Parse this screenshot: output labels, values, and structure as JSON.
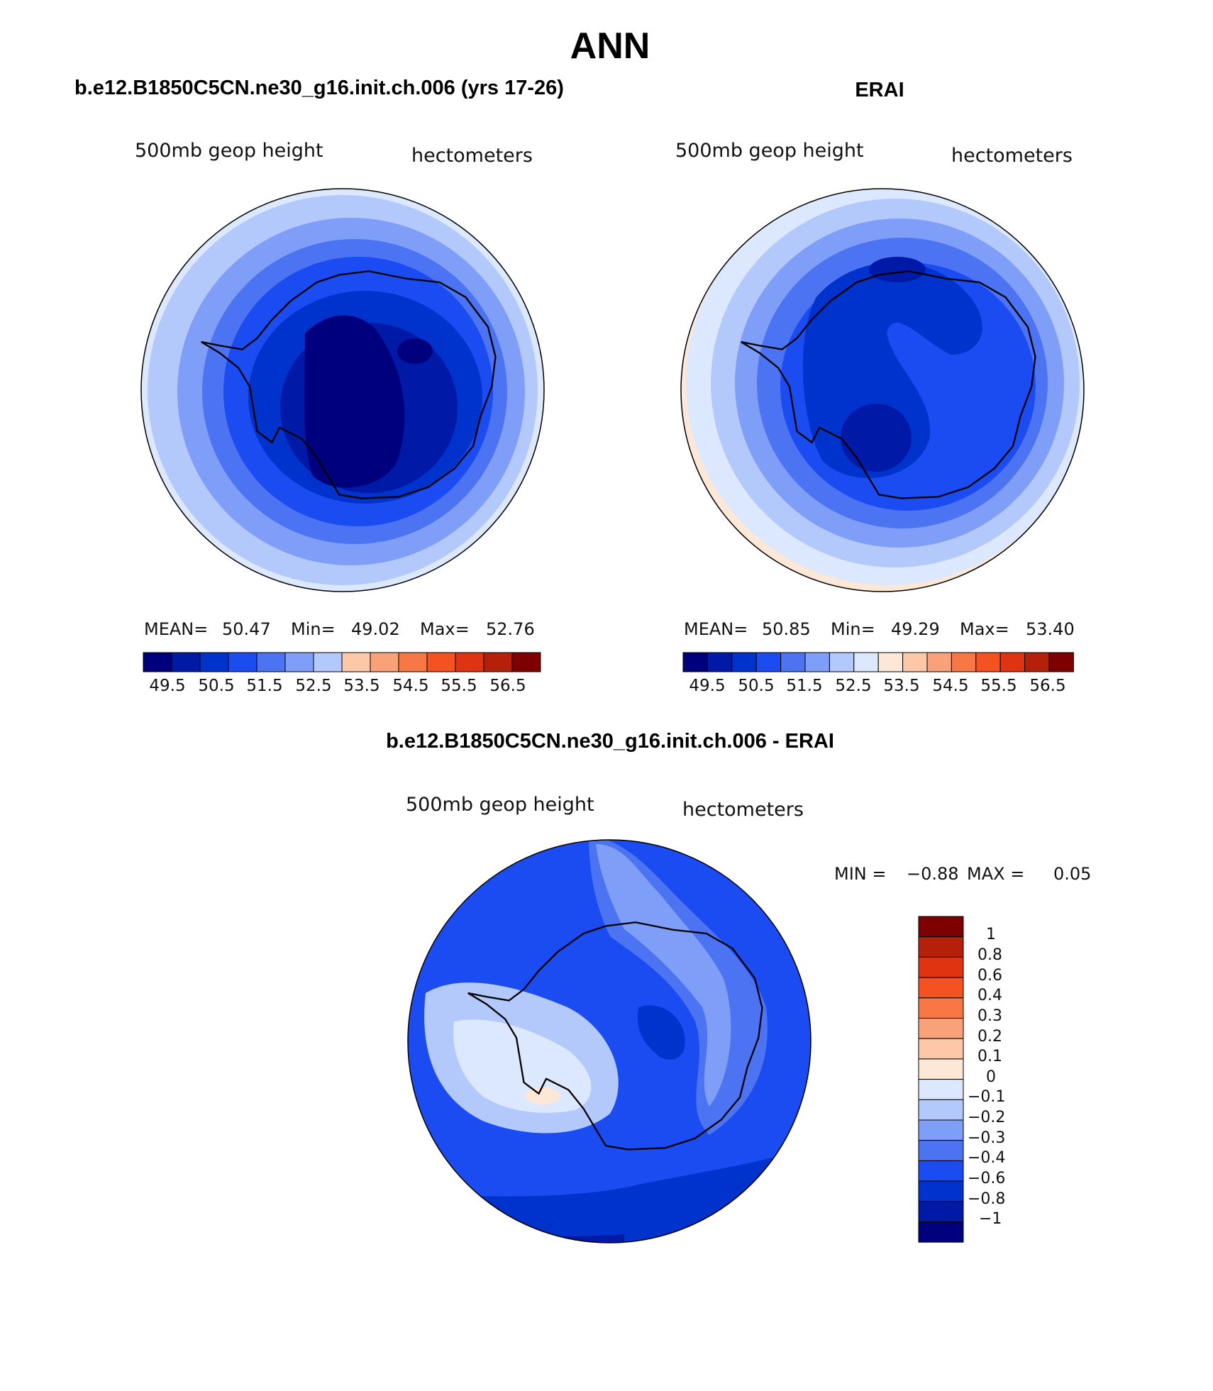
{
  "figure": {
    "title": "ANN"
  },
  "colors": {
    "abs_scale": [
      "#00007f",
      "#0019a6",
      "#0032cc",
      "#1a4cf2",
      "#4c73f2",
      "#7f9ef7",
      "#b3c8fb",
      "#dce8fd",
      "#fde8d7",
      "#fcc8a8",
      "#f9a27a",
      "#f77845",
      "#f55221",
      "#e03311",
      "#b4200a",
      "#7f0000"
    ],
    "diff_scale": [
      "#00007f",
      "#0019a6",
      "#0032cc",
      "#1a4cf2",
      "#4c73f2",
      "#7f9ef7",
      "#b3c8fb",
      "#dce8fd",
      "#fde8d7",
      "#fcc8a8",
      "#f9a27a",
      "#f77845",
      "#f55221",
      "#e03311",
      "#b4200a",
      "#7f0000"
    ],
    "coastline": "#000000"
  },
  "panels": [
    {
      "id": "model",
      "header": "b.e12.B1850C5CN.ne30_g16.init.ch.006 (yrs 17-26)",
      "variable": "500mb geop height",
      "units": "hectometers",
      "stats": {
        "mean_label": "MEAN=",
        "mean": "50.47",
        "min_label": "Min=",
        "min": "49.02",
        "max_label": "Max=",
        "max": "52.76"
      },
      "colorbar_ticks": [
        "49.5",
        "50.5",
        "51.5",
        "52.5",
        "53.5",
        "54.5",
        "55.5",
        "56.5"
      ],
      "colorbar_boxes": 14
    },
    {
      "id": "obs",
      "header": "ERAI",
      "variable": "500mb geop height",
      "units": "hectometers",
      "stats": {
        "mean_label": "MEAN=",
        "mean": "50.85",
        "min_label": "Min=",
        "min": "49.29",
        "max_label": "Max=",
        "max": "53.40"
      },
      "colorbar_ticks": [
        "49.5",
        "50.5",
        "51.5",
        "52.5",
        "53.5",
        "54.5",
        "55.5",
        "56.5"
      ],
      "colorbar_boxes": 16
    },
    {
      "id": "diff",
      "header": "b.e12.B1850C5CN.ne30_g16.init.ch.006 - ERAI",
      "variable": "500mb geop height",
      "units": "hectometers",
      "stats": {
        "min_label": "MIN =",
        "min": "−0.88",
        "max_label": "MAX =",
        "max": "0.05"
      },
      "colorbar_ticks": [
        "1",
        "0.8",
        "0.6",
        "0.4",
        "0.3",
        "0.2",
        "0.1",
        "0",
        "−0.1",
        "−0.2",
        "−0.3",
        "−0.4",
        "−0.6",
        "−0.8",
        "−1"
      ]
    }
  ]
}
